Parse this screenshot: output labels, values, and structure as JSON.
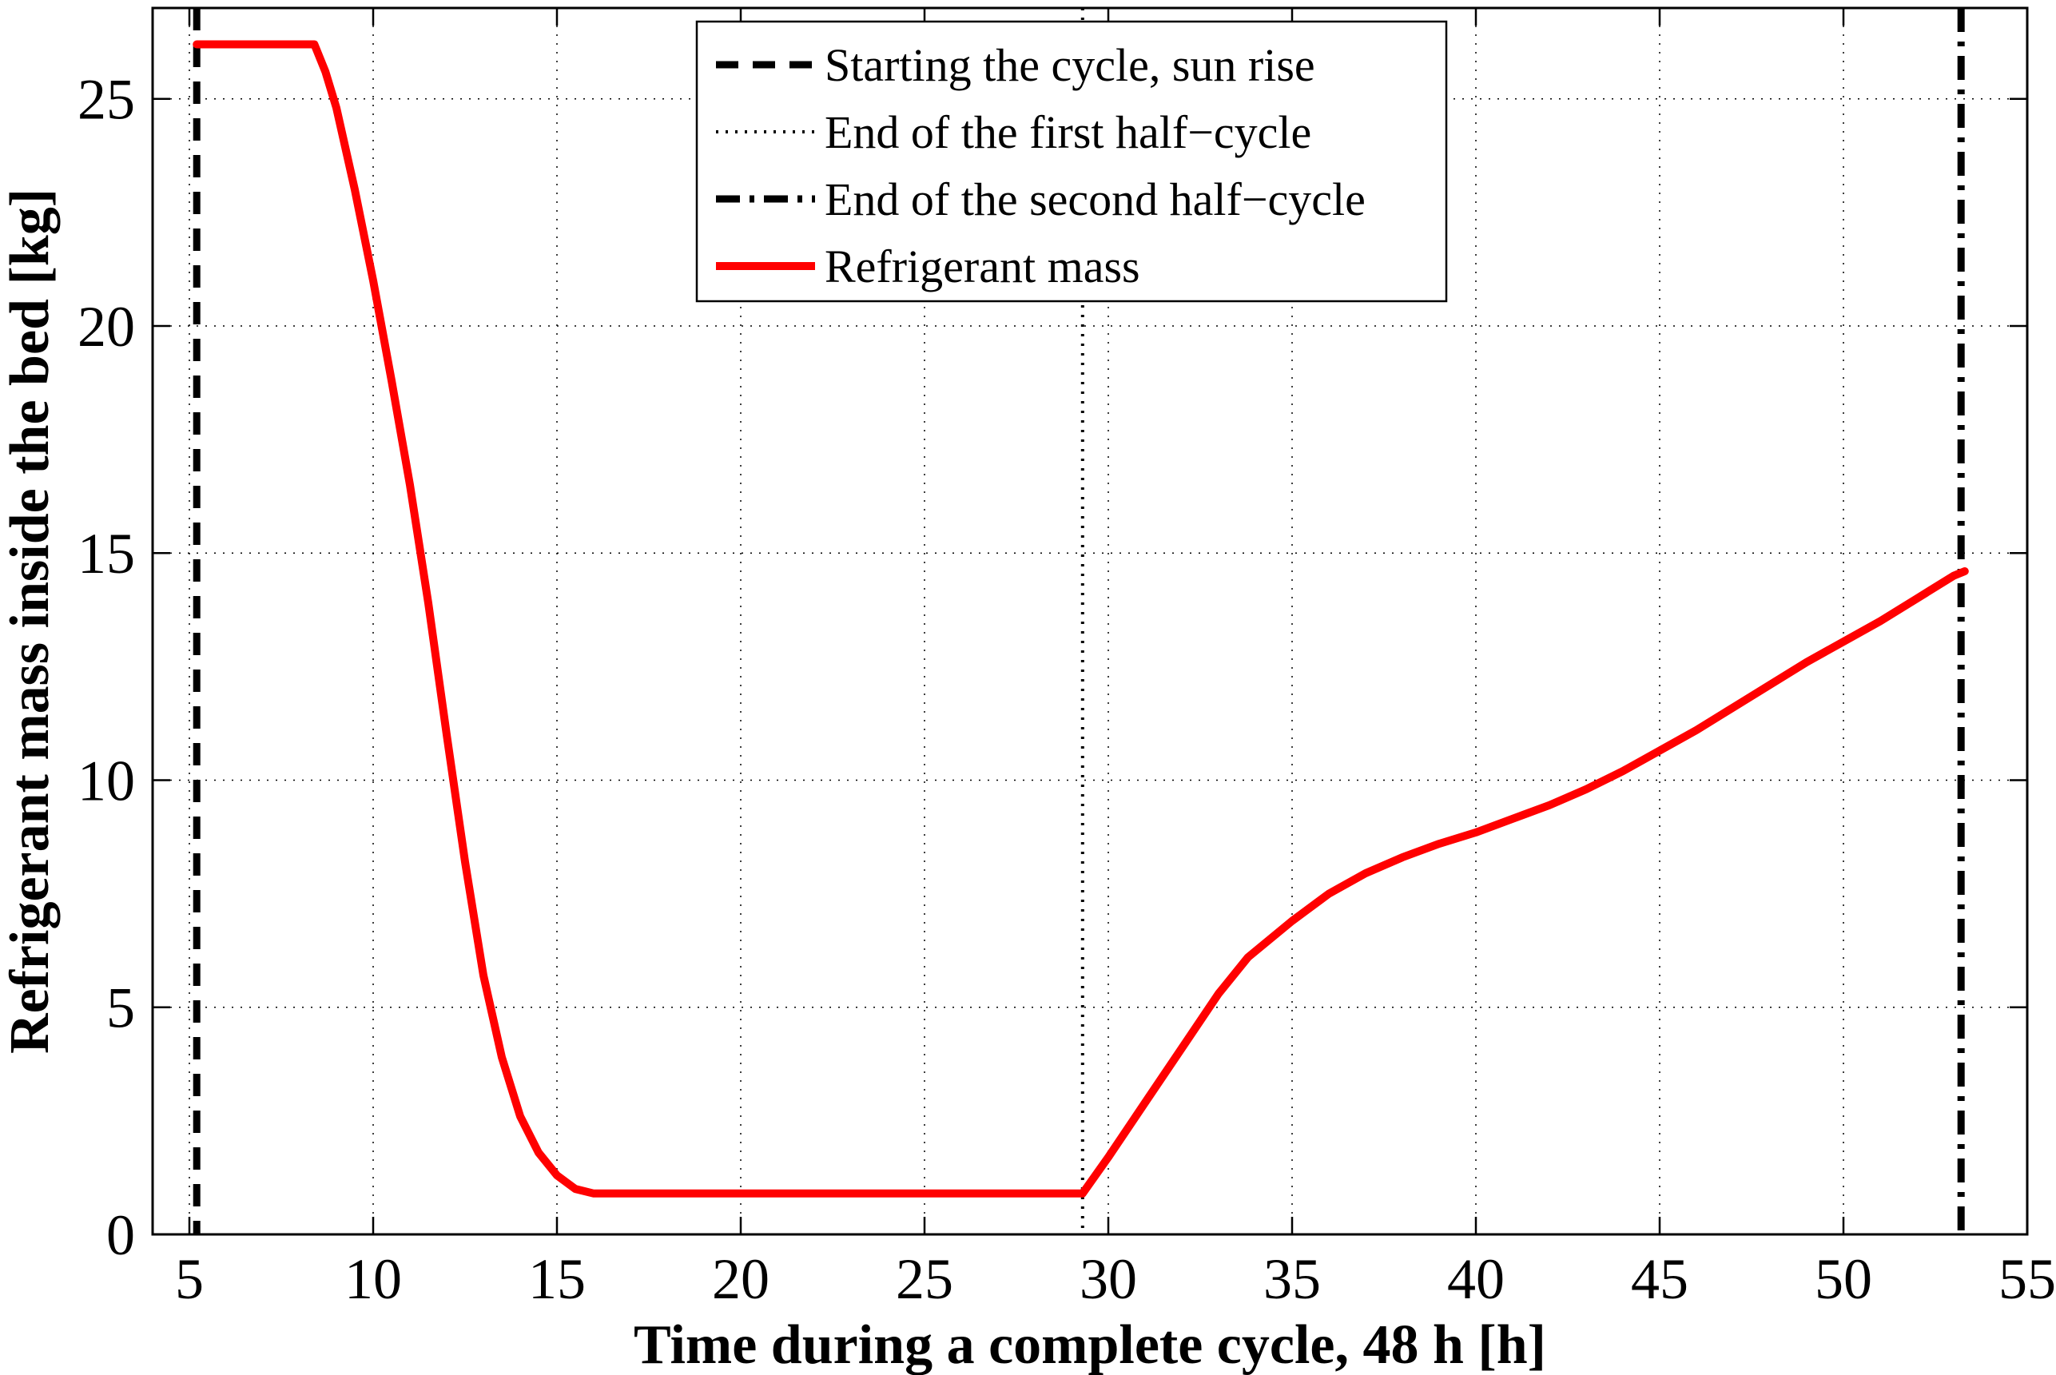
{
  "chart_data": {
    "type": "line",
    "title": "",
    "xlabel": "Time during a complete cycle, 48 h  [h]",
    "ylabel": "Refrigerant mass inside the bed [kg]",
    "xlim": [
      4,
      55
    ],
    "ylim": [
      0,
      27
    ],
    "xticks": [
      5,
      10,
      15,
      20,
      25,
      30,
      35,
      40,
      45,
      50,
      55
    ],
    "yticks": [
      0,
      5,
      10,
      15,
      20,
      25
    ],
    "grid": true,
    "legend_position": "top-center",
    "series": [
      {
        "name": "Refrigerant mass",
        "color": "#ff0000",
        "style": "solid",
        "x": [
          5.2,
          8.4,
          8.7,
          9.0,
          9.5,
          10.0,
          10.5,
          11.0,
          11.5,
          12.0,
          12.5,
          13.0,
          13.5,
          14.0,
          14.5,
          15.0,
          15.5,
          16.0,
          16.3,
          17.0,
          20.0,
          25.0,
          29.3,
          30.0,
          31.0,
          32.0,
          33.0,
          33.8,
          35.0,
          36.0,
          37.0,
          38.0,
          39.0,
          40.0,
          41.0,
          42.0,
          43.0,
          44.0,
          45.0,
          46.0,
          47.0,
          48.0,
          49.0,
          50.0,
          51.0,
          52.0,
          53.0,
          53.3
        ],
        "y": [
          26.2,
          26.2,
          25.6,
          24.8,
          23.0,
          21.0,
          18.8,
          16.5,
          13.9,
          11.0,
          8.2,
          5.7,
          3.9,
          2.6,
          1.8,
          1.3,
          1.0,
          0.9,
          0.9,
          0.9,
          0.9,
          0.9,
          0.9,
          1.7,
          2.9,
          4.1,
          5.3,
          6.1,
          6.9,
          7.5,
          7.95,
          8.3,
          8.6,
          8.85,
          9.15,
          9.45,
          9.8,
          10.2,
          10.65,
          11.1,
          11.6,
          12.1,
          12.6,
          13.05,
          13.5,
          14.0,
          14.5,
          14.6
        ]
      }
    ],
    "vlines": [
      {
        "name": "Starting the cycle, sun rise",
        "x": 5.2,
        "style": "dashed"
      },
      {
        "name": "End of the first half−cycle",
        "x": 29.3,
        "style": "dotted"
      },
      {
        "name": "End of the second half−cycle",
        "x": 53.2,
        "style": "dashdot"
      }
    ],
    "legend": [
      {
        "label": "Starting the cycle, sun rise",
        "style": "dashed",
        "color": "#000000"
      },
      {
        "label": "End of the first half−cycle",
        "style": "dotted",
        "color": "#000000"
      },
      {
        "label": "End of the second half−cycle",
        "style": "dashdot",
        "color": "#000000"
      },
      {
        "label": "Refrigerant mass",
        "style": "solid",
        "color": "#ff0000"
      }
    ]
  }
}
